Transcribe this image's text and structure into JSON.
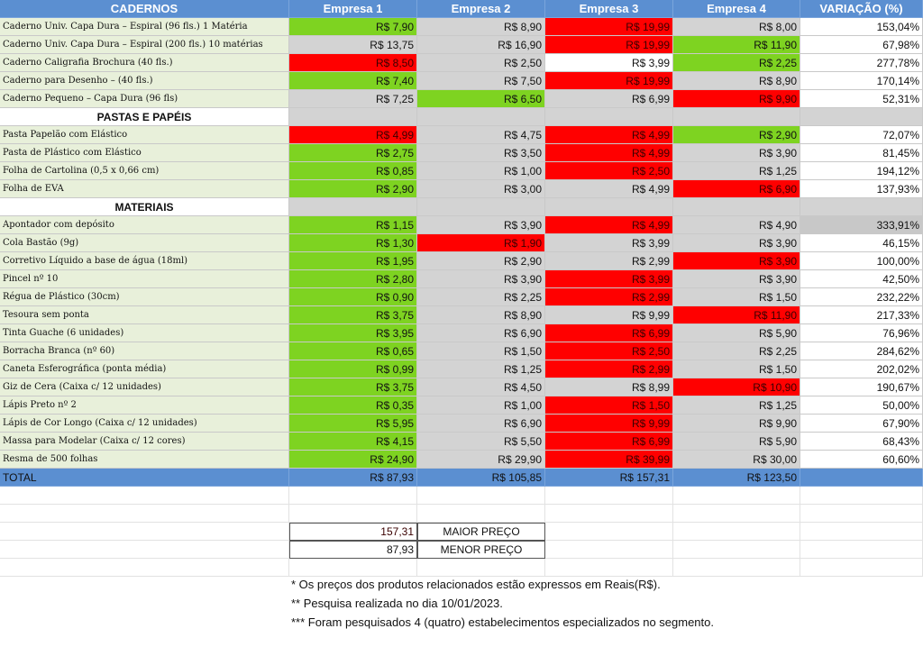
{
  "header": {
    "c0": "CADERNOS",
    "c1": "Empresa 1",
    "c2": "Empresa 2",
    "c3": "Empresa 3",
    "c4": "Empresa 4",
    "c5": "VARIAÇÃO (%)"
  },
  "rows": [
    {
      "type": "item",
      "name": "Caderno Univ. Capa Dura – Espiral (96 fls.) 1 Matéria",
      "p": [
        "R$ 7,90",
        "R$ 8,90",
        "R$ 19,99",
        "R$ 8,00"
      ],
      "c": [
        "green",
        "gray",
        "red",
        "gray"
      ],
      "var": "153,04%",
      "vc": "white"
    },
    {
      "type": "item",
      "name": "Caderno Univ. Capa Dura – Espiral (200 fls.) 10 matérias",
      "p": [
        "R$ 13,75",
        "R$ 16,90",
        "R$ 19,99",
        "R$ 11,90"
      ],
      "c": [
        "gray",
        "gray",
        "red",
        "green"
      ],
      "var": "67,98%",
      "vc": "white"
    },
    {
      "type": "item",
      "name": "Caderno Caligrafia Brochura (40 fls.)",
      "p": [
        "R$ 8,50",
        "R$ 2,50",
        "R$ 3,99",
        "R$ 2,25"
      ],
      "c": [
        "red",
        "gray",
        "white",
        "green"
      ],
      "var": "277,78%",
      "vc": "white"
    },
    {
      "type": "item",
      "name": "Caderno para Desenho – (40 fls.)",
      "p": [
        "R$ 7,40",
        "R$ 7,50",
        "R$ 19,99",
        "R$ 8,90"
      ],
      "c": [
        "green",
        "gray",
        "red",
        "gray"
      ],
      "var": "170,14%",
      "vc": "white"
    },
    {
      "type": "item",
      "name": "Caderno Pequeno – Capa Dura (96 fls)",
      "p": [
        "R$ 7,25",
        "R$ 6,50",
        "R$ 6,99",
        "R$ 9,90"
      ],
      "c": [
        "gray",
        "green",
        "gray",
        "red"
      ],
      "var": "52,31%",
      "vc": "white"
    },
    {
      "type": "section",
      "name": "PASTAS E PAPÉIS"
    },
    {
      "type": "item",
      "name": "Pasta Papelão com Elástico",
      "p": [
        "R$ 4,99",
        "R$ 4,75",
        "R$ 4,99",
        "R$ 2,90"
      ],
      "c": [
        "red",
        "gray",
        "red",
        "green"
      ],
      "var": "72,07%",
      "vc": "white"
    },
    {
      "type": "item",
      "name": "Pasta de Plástico com Elástico",
      "p": [
        "R$ 2,75",
        "R$ 3,50",
        "R$ 4,99",
        "R$ 3,90"
      ],
      "c": [
        "green",
        "gray",
        "red",
        "gray"
      ],
      "var": "81,45%",
      "vc": "white"
    },
    {
      "type": "item",
      "name": "Folha de Cartolina (0,5 x 0,66 cm)",
      "p": [
        "R$ 0,85",
        "R$ 1,00",
        "R$ 2,50",
        "R$ 1,25"
      ],
      "c": [
        "green",
        "gray",
        "red",
        "gray"
      ],
      "var": "194,12%",
      "vc": "white"
    },
    {
      "type": "item",
      "name": "Folha de EVA",
      "p": [
        "R$ 2,90",
        "R$ 3,00",
        "R$ 4,99",
        "R$ 6,90"
      ],
      "c": [
        "green",
        "gray",
        "gray",
        "red"
      ],
      "var": "137,93%",
      "vc": "white"
    },
    {
      "type": "section",
      "name": "MATERIAIS"
    },
    {
      "type": "item",
      "name": "Apontador com depósito",
      "p": [
        "R$ 1,15",
        "R$ 3,90",
        "R$ 4,99",
        "R$ 4,90"
      ],
      "c": [
        "green",
        "gray",
        "red",
        "gray"
      ],
      "var": "333,91%",
      "vc": "gray"
    },
    {
      "type": "item",
      "name": "Cola Bastão (9g)",
      "p": [
        "R$ 1,30",
        "R$ 1,90",
        "R$ 3,99",
        "R$ 3,90"
      ],
      "c": [
        "green",
        "red",
        "gray",
        "gray"
      ],
      "var": "46,15%",
      "vc": "white"
    },
    {
      "type": "item",
      "name": "Corretivo Líquido a base de água (18ml)",
      "p": [
        "R$ 1,95",
        "R$ 2,90",
        "R$ 2,99",
        "R$ 3,90"
      ],
      "c": [
        "green",
        "gray",
        "gray",
        "red"
      ],
      "var": "100,00%",
      "vc": "white"
    },
    {
      "type": "item",
      "name": "Pincel nº 10",
      "p": [
        "R$ 2,80",
        "R$ 3,90",
        "R$ 3,99",
        "R$ 3,90"
      ],
      "c": [
        "green",
        "gray",
        "red",
        "gray"
      ],
      "var": "42,50%",
      "vc": "white"
    },
    {
      "type": "item",
      "name": "Régua de Plástico (30cm)",
      "p": [
        "R$ 0,90",
        "R$ 2,25",
        "R$ 2,99",
        "R$ 1,50"
      ],
      "c": [
        "green",
        "gray",
        "red",
        "gray"
      ],
      "var": "232,22%",
      "vc": "white"
    },
    {
      "type": "item",
      "name": "Tesoura sem ponta",
      "p": [
        "R$ 3,75",
        "R$ 8,90",
        "R$ 9,99",
        "R$ 11,90"
      ],
      "c": [
        "green",
        "gray",
        "gray",
        "red"
      ],
      "var": "217,33%",
      "vc": "white"
    },
    {
      "type": "item",
      "name": "Tinta Guache (6 unidades)",
      "p": [
        "R$ 3,95",
        "R$ 6,90",
        "R$ 6,99",
        "R$ 5,90"
      ],
      "c": [
        "green",
        "gray",
        "red",
        "gray"
      ],
      "var": "76,96%",
      "vc": "white"
    },
    {
      "type": "item",
      "name": "Borracha Branca (nº 60)",
      "p": [
        "R$ 0,65",
        "R$ 1,50",
        "R$ 2,50",
        "R$ 2,25"
      ],
      "c": [
        "green",
        "gray",
        "red",
        "gray"
      ],
      "var": "284,62%",
      "vc": "white"
    },
    {
      "type": "item",
      "name": "Caneta Esferográfica (ponta média)",
      "p": [
        "R$ 0,99",
        "R$ 1,25",
        "R$ 2,99",
        "R$ 1,50"
      ],
      "c": [
        "green",
        "gray",
        "red",
        "gray"
      ],
      "var": "202,02%",
      "vc": "white"
    },
    {
      "type": "item",
      "name": "Giz de Cera (Caixa c/ 12 unidades)",
      "p": [
        "R$ 3,75",
        "R$ 4,50",
        "R$ 8,99",
        "R$ 10,90"
      ],
      "c": [
        "green",
        "gray",
        "gray",
        "red"
      ],
      "var": "190,67%",
      "vc": "white"
    },
    {
      "type": "item",
      "name": "Lápis Preto nº 2",
      "p": [
        "R$ 0,35",
        "R$ 1,00",
        "R$ 1,50",
        "R$ 1,25"
      ],
      "c": [
        "green",
        "gray",
        "red",
        "gray"
      ],
      "var": "50,00%",
      "vc": "white"
    },
    {
      "type": "item",
      "name": "Lápis de Cor Longo (Caixa c/ 12 unidades)",
      "p": [
        "R$ 5,95",
        "R$ 6,90",
        "R$ 9,99",
        "R$ 9,90"
      ],
      "c": [
        "green",
        "gray",
        "red",
        "gray"
      ],
      "var": "67,90%",
      "vc": "white"
    },
    {
      "type": "item",
      "name": "Massa para Modelar (Caixa c/ 12 cores)",
      "p": [
        "R$ 4,15",
        "R$ 5,50",
        "R$ 6,99",
        "R$ 5,90"
      ],
      "c": [
        "green",
        "gray",
        "red",
        "gray"
      ],
      "var": "68,43%",
      "vc": "white"
    },
    {
      "type": "item",
      "name": "Resma de 500 folhas",
      "p": [
        "R$ 24,90",
        "R$ 29,90",
        "R$ 39,99",
        "R$ 30,00"
      ],
      "c": [
        "green",
        "gray",
        "red",
        "gray"
      ],
      "var": "60,60%",
      "vc": "white"
    }
  ],
  "total": {
    "label": "TOTAL",
    "values": [
      "R$ 87,93",
      "R$ 105,85",
      "R$ 157,31",
      "R$ 123,50"
    ]
  },
  "legend": {
    "max_value": "157,31",
    "max_label": "MAIOR PREÇO",
    "min_value": "87,93",
    "min_label": "MENOR PREÇO"
  },
  "notes": [
    "* Os preços dos produtos relacionados estão expressos em Reais(R$).",
    "** Pesquisa realizada no dia 10/01/2023.",
    "*** Foram pesquisados 4 (quatro) estabelecimentos especializados no segmento."
  ],
  "colors": {
    "header": "#5b8fd1",
    "lowest": "#7ed321",
    "highest": "#ff0000",
    "neutral": "#d3d3d3",
    "item_bg": "#e8f0da"
  }
}
